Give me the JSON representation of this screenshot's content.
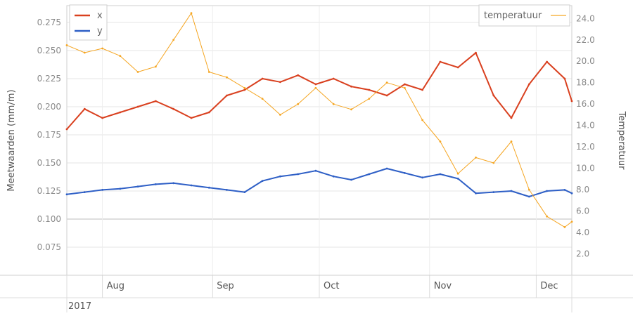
{
  "chart_data": {
    "type": "line",
    "y_left_label": "Meetwaarden (mm/m)",
    "y_right_label": "Temperatuur",
    "y_left_range": [
      0.05,
      0.29
    ],
    "y_left_ticks": [
      "0.075",
      "0.100",
      "0.125",
      "0.150",
      "0.175",
      "0.200",
      "0.225",
      "0.250",
      "0.275"
    ],
    "y_right_range": [
      0.0,
      25.2
    ],
    "y_right_ticks": [
      "2.0",
      "4.0",
      "6.0",
      "8.0",
      "10.0",
      "12.0",
      "14.0",
      "16.0",
      "18.0",
      "20.0",
      "22.0",
      "24.0"
    ],
    "x_start": "2017-07-22",
    "x_end": "2017-12-11",
    "month_labels": [
      {
        "label": "Aug",
        "date": "2017-08-01"
      },
      {
        "label": "Sep",
        "date": "2017-09-01"
      },
      {
        "label": "Oct",
        "date": "2017-10-01"
      },
      {
        "label": "Nov",
        "date": "2017-11-01"
      },
      {
        "label": "Dec",
        "date": "2017-12-01"
      }
    ],
    "year_label": "2017",
    "legend_left": [
      {
        "name": "x",
        "color": "#d9401f"
      },
      {
        "name": "y",
        "color": "#2e5fc6"
      }
    ],
    "legend_right": [
      {
        "name": "temperatuur",
        "color": "#f5a623"
      }
    ],
    "series": [
      {
        "name": "x",
        "axis": "left",
        "color": "#d9401f",
        "x": [
          "2017-07-22",
          "2017-07-27",
          "2017-08-01",
          "2017-08-06",
          "2017-08-11",
          "2017-08-16",
          "2017-08-21",
          "2017-08-26",
          "2017-08-31",
          "2017-09-05",
          "2017-09-10",
          "2017-09-15",
          "2017-09-20",
          "2017-09-25",
          "2017-09-30",
          "2017-10-05",
          "2017-10-10",
          "2017-10-15",
          "2017-10-20",
          "2017-10-25",
          "2017-10-30",
          "2017-11-04",
          "2017-11-09",
          "2017-11-14",
          "2017-11-19",
          "2017-11-24",
          "2017-11-29",
          "2017-12-04",
          "2017-12-09",
          "2017-12-11"
        ],
        "values": [
          0.18,
          0.198,
          0.19,
          0.195,
          0.2,
          0.205,
          0.198,
          0.19,
          0.195,
          0.21,
          0.215,
          0.225,
          0.222,
          0.228,
          0.22,
          0.225,
          0.218,
          0.215,
          0.21,
          0.22,
          0.215,
          0.24,
          0.235,
          0.248,
          0.21,
          0.19,
          0.22,
          0.24,
          0.225,
          0.205
        ]
      },
      {
        "name": "y",
        "axis": "left",
        "color": "#2e5fc6",
        "x": [
          "2017-07-22",
          "2017-07-27",
          "2017-08-01",
          "2017-08-06",
          "2017-08-11",
          "2017-08-16",
          "2017-08-21",
          "2017-08-26",
          "2017-08-31",
          "2017-09-05",
          "2017-09-10",
          "2017-09-15",
          "2017-09-20",
          "2017-09-25",
          "2017-09-30",
          "2017-10-05",
          "2017-10-10",
          "2017-10-15",
          "2017-10-20",
          "2017-10-25",
          "2017-10-30",
          "2017-11-04",
          "2017-11-09",
          "2017-11-14",
          "2017-11-19",
          "2017-11-24",
          "2017-11-29",
          "2017-12-04",
          "2017-12-09",
          "2017-12-11"
        ],
        "values": [
          0.122,
          0.124,
          0.126,
          0.127,
          0.129,
          0.131,
          0.132,
          0.13,
          0.128,
          0.126,
          0.124,
          0.134,
          0.138,
          0.14,
          0.143,
          0.138,
          0.135,
          0.14,
          0.145,
          0.141,
          0.137,
          0.14,
          0.136,
          0.123,
          0.124,
          0.125,
          0.12,
          0.125,
          0.126,
          0.123
        ]
      },
      {
        "name": "temperatuur",
        "axis": "right",
        "color": "#f5a623",
        "x": [
          "2017-07-22",
          "2017-07-27",
          "2017-08-01",
          "2017-08-06",
          "2017-08-11",
          "2017-08-16",
          "2017-08-21",
          "2017-08-26",
          "2017-08-31",
          "2017-09-05",
          "2017-09-10",
          "2017-09-15",
          "2017-09-20",
          "2017-09-25",
          "2017-09-30",
          "2017-10-05",
          "2017-10-10",
          "2017-10-15",
          "2017-10-20",
          "2017-10-25",
          "2017-10-30",
          "2017-11-04",
          "2017-11-09",
          "2017-11-14",
          "2017-11-19",
          "2017-11-24",
          "2017-11-29",
          "2017-12-04",
          "2017-12-09",
          "2017-12-11"
        ],
        "values": [
          21.5,
          20.8,
          21.2,
          20.5,
          19.0,
          19.5,
          22.0,
          24.5,
          19.0,
          18.5,
          17.5,
          16.5,
          15.0,
          16.0,
          17.5,
          16.0,
          15.5,
          16.5,
          18.0,
          17.5,
          14.5,
          12.5,
          9.5,
          11.0,
          10.5,
          12.5,
          8.0,
          5.5,
          4.5,
          5.0
        ]
      }
    ]
  }
}
